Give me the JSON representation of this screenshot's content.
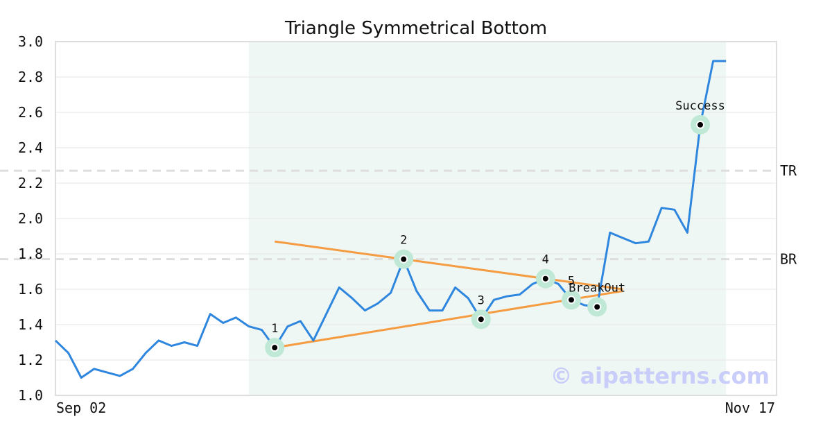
{
  "chart_data": {
    "type": "line",
    "title": "Triangle Symmetrical Bottom",
    "xlabel": "",
    "ylabel": "",
    "ylim": [
      1.0,
      3.0
    ],
    "y_ticks": [
      "1.0",
      "1.2",
      "1.4",
      "1.6",
      "1.8",
      "2.0",
      "2.2",
      "2.4",
      "2.6",
      "2.8",
      "3.0"
    ],
    "x_tick_labels": [
      "Sep 02",
      "Nov 17"
    ],
    "grid": "horizontal",
    "series": [
      {
        "values": [
          1.31,
          1.24,
          1.1,
          1.15,
          1.13,
          1.11,
          1.15,
          1.24,
          1.31,
          1.28,
          1.3,
          1.28,
          1.46,
          1.41,
          1.44,
          1.39,
          1.37,
          1.27,
          1.39,
          1.42,
          1.31,
          1.46,
          1.61,
          1.55,
          1.48,
          1.52,
          1.58,
          1.77,
          1.59,
          1.48,
          1.48,
          1.61,
          1.55,
          1.43,
          1.54,
          1.56,
          1.57,
          1.63,
          1.66,
          1.63,
          1.54,
          1.51,
          1.5,
          1.92,
          1.89,
          1.86,
          1.87,
          2.06,
          2.05,
          1.92,
          2.53,
          2.89,
          2.89
        ]
      }
    ],
    "pattern_region": {
      "start_index": 15,
      "end_index": 52
    },
    "resistance_line": {
      "start": [
        17,
        1.87
      ],
      "end": [
        44,
        1.6
      ]
    },
    "support_line": {
      "start": [
        17,
        1.27
      ],
      "end": [
        44,
        1.59
      ]
    },
    "horizontal_levels": [
      {
        "label": "TR",
        "value": 2.27
      },
      {
        "label": "BR",
        "value": 1.77
      }
    ],
    "points": [
      {
        "label": "1",
        "index": 17,
        "value": 1.27
      },
      {
        "label": "2",
        "index": 27,
        "value": 1.77
      },
      {
        "label": "3",
        "index": 33,
        "value": 1.43
      },
      {
        "label": "4",
        "index": 38,
        "value": 1.66
      },
      {
        "label": "5",
        "index": 40,
        "value": 1.54
      },
      {
        "label": "BreakOut",
        "index": 42,
        "value": 1.5
      },
      {
        "label": "Success",
        "index": 50,
        "value": 2.53
      }
    ],
    "watermark": "© aipatterns.com",
    "colors": {
      "line": "#2e86de",
      "trend": "#f59b42",
      "region": "#eef7f3",
      "marker_halo": "#bfe9d6",
      "level": "#dddddd"
    }
  }
}
